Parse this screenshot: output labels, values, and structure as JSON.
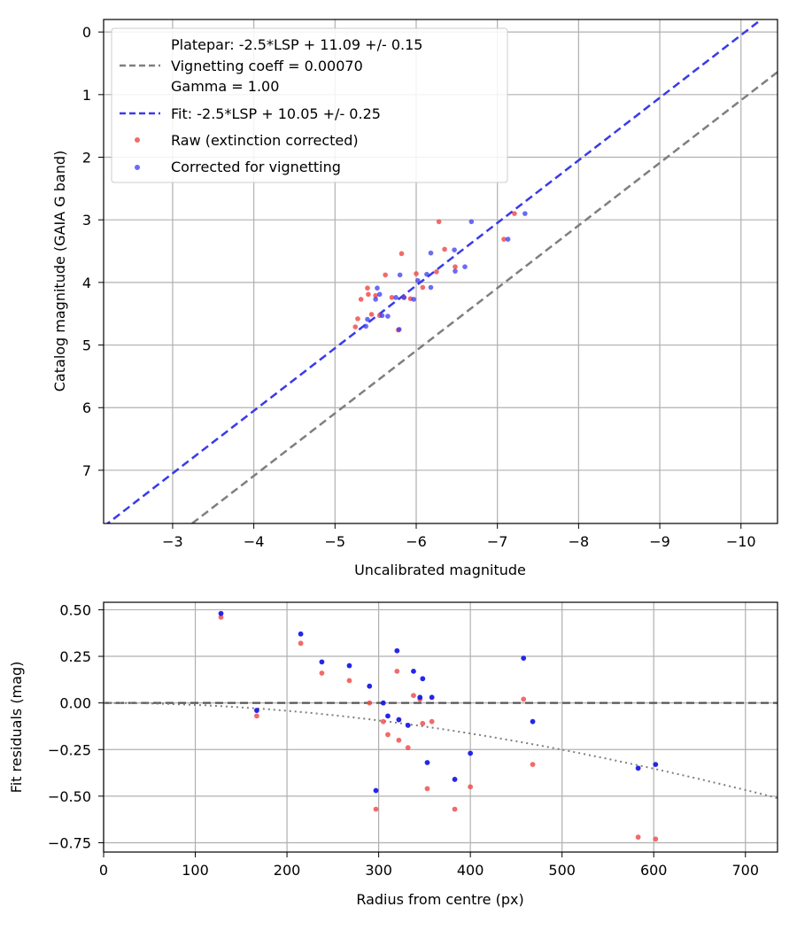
{
  "colors": {
    "platepar": "#7f7f7f",
    "fit": "#3a3aea",
    "raw": "#f05050",
    "vig": "#3a3af0",
    "grid": "#b0b0b0",
    "zero_line": "#555555"
  },
  "chart_data": [
    {
      "type": "scatter",
      "title": "",
      "xlabel": "Uncalibrated magnitude",
      "ylabel": "Catalog magnitude (GAIA G band)",
      "xlim": [
        -2.15,
        -10.45
      ],
      "ylim": [
        7.85,
        -0.2
      ],
      "x_inverted": true,
      "y_inverted": true,
      "xticks": [
        -3,
        -4,
        -5,
        -6,
        -7,
        -8,
        -9,
        -10
      ],
      "xtick_labels": [
        "−3",
        "−4",
        "−5",
        "−6",
        "−7",
        "−8",
        "−9",
        "−10"
      ],
      "yticks": [
        0,
        1,
        2,
        3,
        4,
        5,
        6,
        7
      ],
      "ytick_labels": [
        "0",
        "1",
        "2",
        "3",
        "4",
        "5",
        "6",
        "7"
      ],
      "grid": true,
      "legend": {
        "position": "top-left",
        "entries": [
          {
            "text": "Platepar: -2.5*LSP + 11.09 +/- 0.15"
          },
          {
            "text": "Vignetting coeff = 0.00070"
          },
          {
            "text": "Gamma = 1.00"
          },
          {
            "text": "Fit: -2.5*LSP + 10.05 +/- 0.25"
          },
          {
            "text": "Raw (extinction corrected)"
          },
          {
            "text": "Corrected for vignetting"
          }
        ]
      },
      "lines": [
        {
          "name": "Platepar",
          "slope": 1,
          "intercept": 11.09,
          "style": "dashed"
        },
        {
          "name": "Fit",
          "slope": 1,
          "intercept": 10.05,
          "style": "dashed"
        }
      ],
      "series": [
        {
          "name": "Raw (extinction corrected)",
          "points": [
            [
              -5.25,
              4.71
            ],
            [
              -5.28,
              4.58
            ],
            [
              -5.32,
              4.27
            ],
            [
              -5.4,
              4.09
            ],
            [
              -5.41,
              4.19
            ],
            [
              -5.45,
              4.51
            ],
            [
              -5.5,
              4.21
            ],
            [
              -5.55,
              4.53
            ],
            [
              -5.62,
              3.88
            ],
            [
              -5.7,
              4.24
            ],
            [
              -5.78,
              4.76
            ],
            [
              -5.82,
              3.54
            ],
            [
              -5.85,
              4.24
            ],
            [
              -5.93,
              4.26
            ],
            [
              -6.0,
              3.86
            ],
            [
              -6.08,
              4.08
            ],
            [
              -6.25,
              3.83
            ],
            [
              -6.28,
              3.03
            ],
            [
              -6.35,
              3.47
            ],
            [
              -6.48,
              3.75
            ],
            [
              -7.08,
              3.31
            ],
            [
              -7.21,
              2.9
            ]
          ]
        },
        {
          "name": "Corrected for vignetting",
          "points": [
            [
              -5.38,
              4.7
            ],
            [
              -5.4,
              4.59
            ],
            [
              -5.5,
              4.27
            ],
            [
              -5.52,
              4.09
            ],
            [
              -5.55,
              4.19
            ],
            [
              -5.58,
              4.53
            ],
            [
              -5.65,
              4.54
            ],
            [
              -5.75,
              4.24
            ],
            [
              -5.79,
              4.75
            ],
            [
              -5.8,
              3.88
            ],
            [
              -5.85,
              4.24
            ],
            [
              -5.97,
              4.27
            ],
            [
              -6.02,
              3.97
            ],
            [
              -6.13,
              3.87
            ],
            [
              -6.18,
              3.53
            ],
            [
              -6.18,
              4.08
            ],
            [
              -6.47,
              3.48
            ],
            [
              -6.48,
              3.82
            ],
            [
              -6.6,
              3.75
            ],
            [
              -6.68,
              3.03
            ],
            [
              -7.13,
              3.31
            ],
            [
              -7.34,
              2.9
            ]
          ]
        }
      ]
    },
    {
      "type": "scatter",
      "title": "",
      "xlabel": "Radius from centre (px)",
      "ylabel": "Fit residuals (mag)",
      "xlim": [
        0,
        735
      ],
      "ylim": [
        -0.8,
        0.54
      ],
      "xticks": [
        0,
        100,
        200,
        300,
        400,
        500,
        600,
        700
      ],
      "xtick_labels": [
        "0",
        "100",
        "200",
        "300",
        "400",
        "500",
        "600",
        "700"
      ],
      "yticks": [
        0.5,
        0.25,
        0.0,
        -0.25,
        -0.5,
        -0.75
      ],
      "ytick_labels": [
        "0.50",
        "0.25",
        "0.00",
        "−0.25",
        "−0.50",
        "−0.75"
      ],
      "grid": true,
      "reference_lines": [
        {
          "name": "zero",
          "y": 0,
          "style": "dashed"
        },
        {
          "name": "vignetting curve",
          "coefficient": 0.0007,
          "style": "dotted"
        }
      ],
      "series": [
        {
          "name": "Raw (extinction corrected)",
          "x": [
            128,
            167,
            215,
            238,
            268,
            290,
            297,
            305,
            310,
            320,
            322,
            332,
            338,
            345,
            348,
            353,
            358,
            383,
            400,
            458,
            468,
            583,
            602
          ],
          "y": [
            0.46,
            -0.07,
            0.32,
            0.16,
            0.12,
            0.0,
            -0.57,
            -0.1,
            -0.17,
            0.17,
            -0.2,
            -0.24,
            0.04,
            0.02,
            -0.11,
            -0.46,
            -0.1,
            -0.57,
            -0.45,
            0.02,
            -0.33,
            -0.72,
            -0.73
          ]
        },
        {
          "name": "Corrected for vignetting",
          "x": [
            128,
            167,
            215,
            238,
            268,
            290,
            297,
            305,
            310,
            320,
            322,
            332,
            338,
            345,
            348,
            353,
            358,
            383,
            400,
            458,
            468,
            583,
            602
          ],
          "y": [
            0.48,
            -0.04,
            0.37,
            0.22,
            0.2,
            0.09,
            -0.47,
            0.0,
            -0.07,
            0.28,
            -0.09,
            -0.12,
            0.17,
            0.03,
            0.13,
            -0.32,
            0.03,
            -0.41,
            -0.27,
            0.24,
            -0.1,
            -0.35,
            -0.33
          ]
        }
      ]
    }
  ]
}
